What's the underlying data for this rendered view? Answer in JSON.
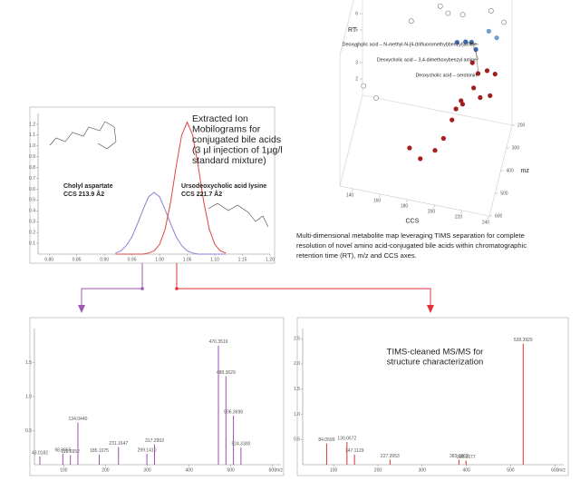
{
  "chart_data": [
    {
      "type": "line",
      "annotation_lines": [
        "Extracted Ion",
        "Mobilograms for",
        "conjugated bile acids",
        "(3 µl injection of 1µg/l",
        "standard mixture)"
      ],
      "peak_labels": [
        [
          "Cholyl aspartate",
          "CCS 213.9 Å2"
        ],
        [
          "Ursodeoxycholic acid lysine",
          "CCS 221.7 Å2"
        ]
      ],
      "x": [
        0.92,
        0.93,
        0.94,
        0.95,
        0.96,
        0.97,
        0.98,
        0.99,
        1.0,
        1.01,
        1.02,
        1.03,
        1.04,
        1.05,
        1.06,
        1.07,
        1.08,
        1.09,
        1.1,
        1.11,
        1.12
      ],
      "series": [
        {
          "color": "#8a7fd6",
          "values": [
            0.01,
            0.03,
            0.08,
            0.16,
            0.28,
            0.41,
            0.53,
            0.57,
            0.53,
            0.41,
            0.28,
            0.16,
            0.08,
            0.03,
            0.01,
            0,
            0,
            0,
            0,
            0,
            0
          ]
        },
        {
          "color": "#e0453f",
          "values": [
            0,
            0,
            0,
            0,
            0,
            0,
            0.01,
            0.03,
            0.09,
            0.23,
            0.48,
            0.81,
            1.1,
            1.22,
            1.1,
            0.81,
            0.48,
            0.23,
            0.09,
            0.03,
            0.01
          ]
        }
      ],
      "xlim": [
        0.78,
        1.2
      ],
      "xticks": [
        {
          "value": 0.8,
          "label": "0.80"
        },
        0.85,
        {
          "value": 0.9,
          "label": "0.90"
        },
        0.95,
        {
          "value": 1,
          "label": "1.00"
        },
        1.05,
        {
          "value": 1.1,
          "label": "1.10"
        },
        1.15,
        {
          "value": 1.2,
          "label": "1.20"
        }
      ],
      "ylim": [
        0,
        1.3
      ],
      "yticks": [
        0.1,
        0.2,
        0.3,
        0.4,
        0.5,
        0.6,
        0.7,
        0.8,
        0.9,
        {
          "value": 1,
          "label": "1.0"
        },
        1.1,
        1.2
      ]
    },
    {
      "type": "scatter3d",
      "annotations": [
        "Deoxycholic acid – N-methyl-N-[4-(trifluoromethyl)benzyl]amine",
        "Deoxycholic acid – 3,4-dimethoxybenzyl amine",
        "Deoxycholic acid – serotonin"
      ],
      "caption_lines": [
        "Multi-dimensional metabolite map leveraging TIMS separation for complete",
        "resolution of novel amino acid-conjugated bile acids within chromatographic",
        "retention time (RT), m/z and CCS axes."
      ],
      "xlabel": "CCS",
      "ylabel": "mz",
      "zlabel": "RT",
      "x": [
        210,
        214,
        218,
        225,
        205,
        230,
        215,
        220,
        225,
        218,
        230,
        210,
        222,
        205,
        200,
        195,
        185,
        175,
        205,
        228,
        212,
        195,
        205,
        225,
        235,
        140,
        150,
        170,
        188
      ],
      "y": [
        300,
        290,
        310,
        250,
        330,
        230,
        300,
        320,
        280,
        350,
        260,
        380,
        330,
        420,
        450,
        480,
        500,
        450,
        350,
        300,
        400,
        250,
        230,
        210,
        220,
        420,
        440,
        300,
        220
      ],
      "z": [
        7.0,
        6.9,
        6.8,
        7.2,
        7.3,
        6.6,
        5.8,
        5.5,
        5.2,
        5.0,
        4.8,
        4.5,
        4.2,
        3.8,
        3.0,
        2.6,
        2.2,
        2.0,
        3.5,
        4.0,
        4.6,
        7.8,
        7.6,
        7.9,
        7.5,
        4.8,
        4.5,
        7.6,
        7.7
      ],
      "colors": [
        "#3d6fb0",
        "#3d6fb0",
        "#3d6fb0",
        "#6f9fd0",
        "#3d6fb0",
        "#6f9fd0",
        "#a51c1c",
        "#a51c1c",
        "#a51c1c",
        "#a51c1c",
        "#a51c1c",
        "#a51c1c",
        "#a51c1c",
        "#a51c1c",
        "#a51c1c",
        "#a51c1c",
        "#a51c1c",
        "#a51c1c",
        "#a51c1c",
        "#a51c1c",
        "#a51c1c",
        "#ffffff",
        "#ffffff",
        "#ffffff",
        "#ffffff",
        "#ffffff",
        "#ffffff",
        "#ffffff",
        "#ffffff"
      ],
      "xlim": [
        130,
        240
      ],
      "xticks": [
        140,
        160,
        180,
        200,
        220,
        240
      ],
      "ylim": [
        200,
        600
      ],
      "yticks": [
        200,
        300,
        400,
        500,
        600
      ],
      "zlim": [
        1,
        9
      ],
      "zticks": [
        2,
        3,
        4,
        5,
        6,
        7,
        8
      ]
    },
    {
      "type": "stick",
      "color": "#9b4fb0",
      "xlabel": "m/z",
      "x": [
        43.0182,
        98.0055,
        116.0352,
        134.044,
        185.1075,
        231.1647,
        299.141,
        317.2993,
        470.3519,
        488.3629,
        506.3698,
        524.33
      ],
      "x_labels": [
        "43.0182",
        "98.0055",
        "116.0352",
        "134.0440",
        "185.1075",
        "231.1647",
        "299.1410",
        "317.2993",
        "470.3519",
        "488.3629",
        "506.3698",
        "524.3300"
      ],
      "values": [
        0.12,
        0.16,
        0.14,
        0.62,
        0.15,
        0.26,
        0.16,
        0.3,
        1.75,
        1.3,
        0.72,
        0.25
      ],
      "xlim": [
        30,
        620
      ],
      "xticks": [
        100,
        200,
        300,
        400,
        500,
        600
      ],
      "ylim": [
        0,
        2.0
      ],
      "yticks": [
        0.5,
        {
          "value": 1,
          "label": "1.0"
        },
        1.5
      ]
    },
    {
      "type": "stick",
      "color": "#d9342b",
      "xlabel": "m/z",
      "annotation_lines": [
        "TIMS-cleaned MS/MS for",
        "structure characterization"
      ],
      "x": [
        84.0599,
        130.0672,
        147.1129,
        227.3953,
        383.1862,
        399.2677,
        528.3929
      ],
      "x_labels": [
        "84.0599",
        "130.0672",
        "147.1129",
        "227.3953",
        "383.1862",
        "399.2677",
        "528.3929"
      ],
      "values": [
        0.42,
        0.45,
        0.2,
        0.1,
        0.1,
        0.08,
        2.4
      ],
      "xlim": [
        30,
        620
      ],
      "xticks": [
        100,
        200,
        300,
        400,
        500,
        600
      ],
      "ylim": [
        0,
        2.7
      ],
      "yticks": [
        0.5,
        {
          "value": 1,
          "label": "1.0"
        },
        1.5,
        {
          "value": 2,
          "label": "2.0"
        },
        2.5
      ]
    }
  ]
}
